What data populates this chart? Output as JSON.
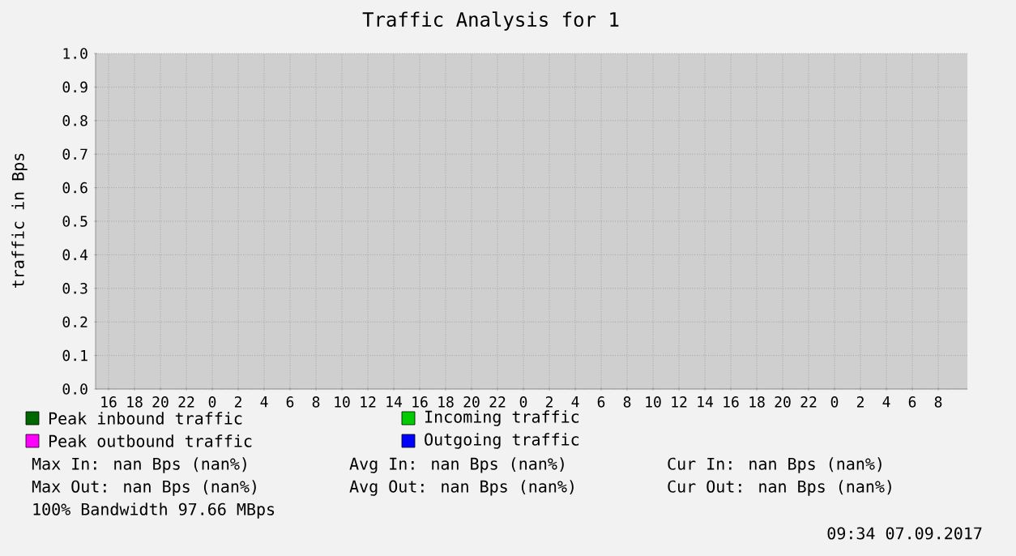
{
  "chart_data": {
    "type": "line",
    "title": "Traffic Analysis for 1",
    "ylabel": "traffic in Bps",
    "categories": [
      "16",
      "18",
      "20",
      "22",
      "0",
      "2",
      "4",
      "6",
      "8",
      "10",
      "12",
      "14",
      "16",
      "18",
      "20",
      "22",
      "0",
      "2",
      "4",
      "6",
      "8",
      "10",
      "12",
      "14",
      "16",
      "18",
      "20",
      "22",
      "0",
      "2",
      "4",
      "6",
      "8"
    ],
    "series": [
      {
        "name": "Peak inbound traffic",
        "color": "#006600",
        "values": [
          null,
          null,
          null,
          null,
          null,
          null,
          null,
          null,
          null,
          null,
          null,
          null,
          null,
          null,
          null,
          null,
          null,
          null,
          null,
          null,
          null,
          null,
          null,
          null,
          null,
          null,
          null,
          null,
          null,
          null,
          null,
          null,
          null
        ]
      },
      {
        "name": "Incoming traffic",
        "color": "#00cc00",
        "values": [
          null,
          null,
          null,
          null,
          null,
          null,
          null,
          null,
          null,
          null,
          null,
          null,
          null,
          null,
          null,
          null,
          null,
          null,
          null,
          null,
          null,
          null,
          null,
          null,
          null,
          null,
          null,
          null,
          null,
          null,
          null,
          null,
          null
        ]
      },
      {
        "name": "Peak outbound traffic",
        "color": "#ff00ff",
        "values": [
          null,
          null,
          null,
          null,
          null,
          null,
          null,
          null,
          null,
          null,
          null,
          null,
          null,
          null,
          null,
          null,
          null,
          null,
          null,
          null,
          null,
          null,
          null,
          null,
          null,
          null,
          null,
          null,
          null,
          null,
          null,
          null,
          null
        ]
      },
      {
        "name": "Outgoing traffic",
        "color": "#0000ff",
        "values": [
          null,
          null,
          null,
          null,
          null,
          null,
          null,
          null,
          null,
          null,
          null,
          null,
          null,
          null,
          null,
          null,
          null,
          null,
          null,
          null,
          null,
          null,
          null,
          null,
          null,
          null,
          null,
          null,
          null,
          null,
          null,
          null,
          null
        ]
      }
    ],
    "ylim": [
      0,
      1
    ],
    "yticks": [
      {
        "value": 0,
        "label": "0.0"
      },
      {
        "value": 0.1,
        "label": "0.1"
      },
      {
        "value": 0.2,
        "label": "0.2"
      },
      {
        "value": 0.3,
        "label": "0.3"
      },
      {
        "value": 0.4,
        "label": "0.4"
      },
      {
        "value": 0.5,
        "label": "0.5"
      },
      {
        "value": 0.6,
        "label": "0.6"
      },
      {
        "value": 0.7,
        "label": "0.7"
      },
      {
        "value": 0.8,
        "label": "0.8"
      },
      {
        "value": 0.9,
        "label": "0.9"
      },
      {
        "value": 1,
        "label": "1.0"
      }
    ],
    "grid": true,
    "legend": "bottom",
    "annotations": [
      "Max In: nan Bps (nan%)",
      "Avg In: nan Bps (nan%)",
      "Cur In: nan Bps (nan%)",
      "Max Out: nan Bps (nan%)",
      "Avg Out: nan Bps (nan%)",
      "Cur Out: nan Bps (nan%)",
      "100% Bandwidth 97.66 MBps",
      "09:34 07.09.2017"
    ]
  }
}
